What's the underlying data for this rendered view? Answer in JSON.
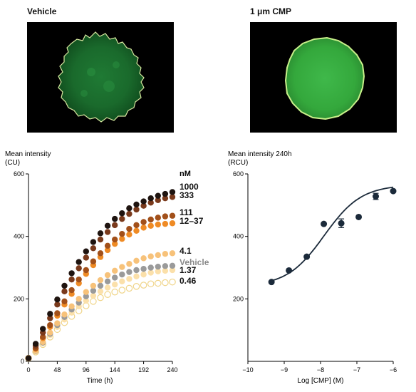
{
  "panels": {
    "vehicle_title": "Vehicle",
    "cmp_title": "1 μm CMP"
  },
  "chart_data": [
    {
      "type": "scatter",
      "ylabel_line1": "Mean intensity",
      "ylabel_line2": "(CU)",
      "xlabel": "Time (h)",
      "unit_label": "nM",
      "xlim": [
        0,
        240
      ],
      "ylim": [
        0,
        600
      ],
      "xticks": [
        0,
        48,
        96,
        144,
        192,
        240
      ],
      "yticks": [
        0,
        200,
        400,
        600
      ],
      "grid": false,
      "series": [
        {
          "name": "1000",
          "color": "#1f1410",
          "filled": true,
          "values": [
            10,
            56,
            104,
            152,
            198,
            242,
            282,
            318,
            352,
            382,
            410,
            434,
            456,
            474,
            490,
            502,
            512,
            522,
            530,
            536,
            542
          ]
        },
        {
          "name": "333",
          "color": "#7a3a1c",
          "filled": true,
          "values": [
            10,
            50,
            92,
            138,
            182,
            224,
            262,
            298,
            332,
            362,
            390,
            414,
            436,
            456,
            472,
            486,
            498,
            508,
            516,
            522,
            526
          ]
        },
        {
          "name": "111",
          "color": "#a2501a",
          "filled": true,
          "values": [
            10,
            42,
            78,
            116,
            154,
            192,
            228,
            262,
            292,
            320,
            346,
            370,
            390,
            408,
            424,
            436,
            446,
            454,
            460,
            464,
            466
          ]
        },
        {
          "name": "12–37",
          "color": "#ef8b25",
          "filled": true,
          "values": [
            10,
            40,
            74,
            110,
            146,
            182,
            216,
            250,
            280,
            308,
            334,
            356,
            376,
            392,
            406,
            418,
            428,
            434,
            438,
            440,
            442
          ]
        },
        {
          "name": "4.1",
          "color": "#f7c27a",
          "filled": true,
          "values": [
            10,
            34,
            62,
            92,
            122,
            150,
            176,
            200,
            222,
            242,
            260,
            276,
            290,
            302,
            312,
            322,
            330,
            336,
            340,
            344,
            346
          ]
        },
        {
          "name": "Vehicle",
          "color": "#9a9a9a",
          "filled": true,
          "values": [
            10,
            33,
            60,
            88,
            116,
            142,
            166,
            188,
            208,
            226,
            242,
            256,
            268,
            278,
            286,
            292,
            296,
            300,
            303,
            305,
            306
          ]
        },
        {
          "name": "1.37",
          "color": "#fbe0aa",
          "filled": true,
          "values": [
            10,
            32,
            58,
            84,
            110,
            134,
            156,
            176,
            194,
            210,
            224,
            236,
            246,
            256,
            264,
            272,
            278,
            284,
            288,
            290,
            292
          ]
        },
        {
          "name": "0.46",
          "color": "#f0d58a",
          "filled": false,
          "values": [
            10,
            30,
            54,
            78,
            102,
            124,
            144,
            162,
            178,
            192,
            204,
            214,
            222,
            228,
            234,
            240,
            244,
            248,
            250,
            252,
            254
          ]
        }
      ],
      "x": [
        0,
        12,
        24,
        36,
        48,
        60,
        72,
        84,
        96,
        108,
        120,
        132,
        144,
        156,
        168,
        180,
        192,
        204,
        216,
        228,
        240
      ]
    },
    {
      "type": "scatter",
      "ylabel_line1": "Mean intensity 240h",
      "ylabel_line2": "(RCU)",
      "xlabel": "Log [CMP] (M)",
      "xlim": [
        -10,
        -6
      ],
      "ylim": [
        0,
        600
      ],
      "xticks": [
        -10,
        -9,
        -8,
        -7,
        -6
      ],
      "xtick_labels": [
        "−10",
        "−9",
        "−8",
        "−7",
        "−6"
      ],
      "yticks": [
        200,
        400,
        600
      ],
      "grid": false,
      "points": [
        {
          "x": -9.35,
          "y": 254,
          "err": 0
        },
        {
          "x": -8.87,
          "y": 291,
          "err": 0
        },
        {
          "x": -8.38,
          "y": 335,
          "err": 0
        },
        {
          "x": -7.91,
          "y": 440,
          "err": 0
        },
        {
          "x": -7.43,
          "y": 442,
          "err": 14
        },
        {
          "x": -6.95,
          "y": 462,
          "err": 0
        },
        {
          "x": -6.48,
          "y": 528,
          "err": 10
        },
        {
          "x": -6.0,
          "y": 545,
          "err": 0
        }
      ],
      "fit": {
        "bottom": 240,
        "top": 565,
        "logEC50": -7.9,
        "hill": 0.85
      },
      "color": "#1b2a3a"
    }
  ]
}
